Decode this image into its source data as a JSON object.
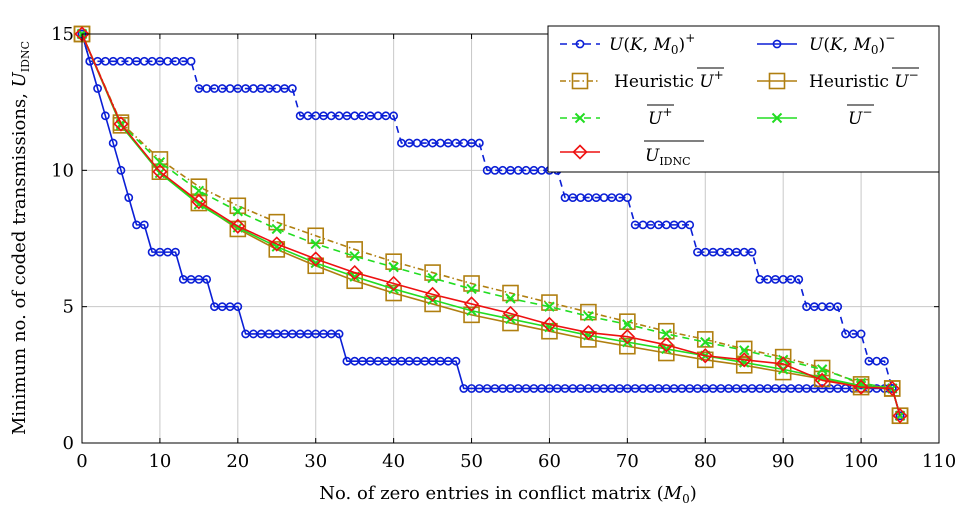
{
  "chart_data": {
    "type": "line",
    "xlabel": "No. of zero entries in conflict matrix (M0)",
    "ylabel": "Minimum no. of coded transmissions, U_IDNC",
    "xlim": [
      0,
      110
    ],
    "ylim": [
      0,
      15
    ],
    "xticks": [
      0,
      10,
      20,
      30,
      40,
      50,
      60,
      70,
      80,
      90,
      100,
      110
    ],
    "yticks": [
      0,
      5,
      10,
      15
    ],
    "grid": true,
    "legend_position": "top-right",
    "colors": {
      "blue": "#0b1fd6",
      "olive": "#b07f10",
      "green": "#22dd22",
      "red": "#ee1111"
    },
    "series": [
      {
        "key": "u_plus",
        "name": "U(K, M0)+",
        "color": "#0b1fd6",
        "style": "dashed",
        "marker": "circle",
        "x": [
          0,
          1,
          2,
          3,
          4,
          5,
          6,
          7,
          8,
          9,
          10,
          11,
          12,
          13,
          14,
          15,
          16,
          17,
          18,
          19,
          20,
          21,
          22,
          23,
          24,
          25,
          26,
          27,
          28,
          29,
          30,
          31,
          32,
          33,
          34,
          35,
          36,
          37,
          38,
          39,
          40,
          41,
          42,
          43,
          44,
          45,
          46,
          47,
          48,
          49,
          50,
          51,
          52,
          53,
          54,
          55,
          56,
          57,
          58,
          59,
          60,
          61,
          62,
          63,
          64,
          65,
          66,
          67,
          68,
          69,
          70,
          71,
          72,
          73,
          74,
          75,
          76,
          77,
          78,
          79,
          80,
          81,
          82,
          83,
          84,
          85,
          86,
          87,
          88,
          89,
          90,
          91,
          92,
          93,
          94,
          95,
          96,
          97,
          98,
          99,
          100,
          101,
          102,
          103,
          104,
          105
        ],
        "y": [
          15,
          14,
          14,
          14,
          14,
          14,
          14,
          14,
          14,
          14,
          14,
          14,
          14,
          14,
          14,
          13,
          13,
          13,
          13,
          13,
          13,
          13,
          13,
          13,
          13,
          13,
          13,
          13,
          12,
          12,
          12,
          12,
          12,
          12,
          12,
          12,
          12,
          12,
          12,
          12,
          12,
          11,
          11,
          11,
          11,
          11,
          11,
          11,
          11,
          11,
          11,
          11,
          10,
          10,
          10,
          10,
          10,
          10,
          10,
          10,
          10,
          10,
          9,
          9,
          9,
          9,
          9,
          9,
          9,
          9,
          9,
          8,
          8,
          8,
          8,
          8,
          8,
          8,
          8,
          7,
          7,
          7,
          7,
          7,
          7,
          7,
          7,
          6,
          6,
          6,
          6,
          6,
          6,
          5,
          5,
          5,
          5,
          5,
          4,
          4,
          4,
          3,
          3,
          3,
          2,
          1
        ]
      },
      {
        "key": "u_minus",
        "name": "U(K, M0)−",
        "color": "#0b1fd6",
        "style": "solid",
        "marker": "circle",
        "x": [
          0,
          1,
          2,
          3,
          4,
          5,
          6,
          7,
          8,
          9,
          10,
          11,
          12,
          13,
          14,
          15,
          16,
          17,
          18,
          19,
          20,
          21,
          22,
          23,
          24,
          25,
          26,
          27,
          28,
          29,
          30,
          31,
          32,
          33,
          34,
          35,
          36,
          37,
          38,
          39,
          40,
          41,
          42,
          43,
          44,
          45,
          46,
          47,
          48,
          49,
          50,
          51,
          52,
          53,
          54,
          55,
          56,
          57,
          58,
          59,
          60,
          61,
          62,
          63,
          64,
          65,
          66,
          67,
          68,
          69,
          70,
          71,
          72,
          73,
          74,
          75,
          76,
          77,
          78,
          79,
          80,
          81,
          82,
          83,
          84,
          85,
          86,
          87,
          88,
          89,
          90,
          91,
          92,
          93,
          94,
          95,
          96,
          97,
          98,
          99,
          100,
          101,
          102,
          103,
          104,
          105
        ],
        "y": [
          15,
          14,
          13,
          12,
          11,
          10,
          9,
          8,
          8,
          7,
          7,
          7,
          7,
          6,
          6,
          6,
          6,
          5,
          5,
          5,
          5,
          4,
          4,
          4,
          4,
          4,
          4,
          4,
          4,
          4,
          4,
          4,
          4,
          4,
          3,
          3,
          3,
          3,
          3,
          3,
          3,
          3,
          3,
          3,
          3,
          3,
          3,
          3,
          3,
          2,
          2,
          2,
          2,
          2,
          2,
          2,
          2,
          2,
          2,
          2,
          2,
          2,
          2,
          2,
          2,
          2,
          2,
          2,
          2,
          2,
          2,
          2,
          2,
          2,
          2,
          2,
          2,
          2,
          2,
          2,
          2,
          2,
          2,
          2,
          2,
          2,
          2,
          2,
          2,
          2,
          2,
          2,
          2,
          2,
          2,
          2,
          2,
          2,
          2,
          2,
          2,
          2,
          2,
          2,
          2,
          1
        ]
      },
      {
        "key": "heur_plus",
        "name": "Heuristic U+",
        "color": "#b07f10",
        "style": "dashdot",
        "marker": "square",
        "x": [
          0,
          5,
          10,
          15,
          20,
          25,
          30,
          35,
          40,
          45,
          50,
          55,
          60,
          65,
          70,
          75,
          80,
          85,
          90,
          95,
          100,
          104,
          105
        ],
        "y": [
          15,
          11.75,
          10.4,
          9.4,
          8.7,
          8.1,
          7.6,
          7.1,
          6.65,
          6.25,
          5.85,
          5.5,
          5.15,
          4.8,
          4.45,
          4.1,
          3.8,
          3.45,
          3.15,
          2.75,
          2.15,
          2.0,
          1.0
        ]
      },
      {
        "key": "heur_minus",
        "name": "Heuristic U−",
        "color": "#b07f10",
        "style": "solid",
        "marker": "square",
        "x": [
          0,
          5,
          10,
          15,
          20,
          25,
          30,
          35,
          40,
          45,
          50,
          55,
          60,
          65,
          70,
          75,
          80,
          85,
          90,
          95,
          100,
          104,
          105
        ],
        "y": [
          15,
          11.65,
          9.95,
          8.8,
          7.85,
          7.1,
          6.5,
          5.95,
          5.5,
          5.1,
          4.7,
          4.4,
          4.1,
          3.8,
          3.55,
          3.3,
          3.05,
          2.85,
          2.6,
          2.35,
          2.05,
          2.0,
          1.0
        ]
      },
      {
        "key": "u_bar_plus",
        "name": "U+",
        "color": "#22dd22",
        "style": "dashed",
        "marker": "cross",
        "x": [
          0,
          5,
          10,
          15,
          20,
          25,
          30,
          35,
          40,
          45,
          50,
          55,
          60,
          65,
          70,
          75,
          80,
          85,
          90,
          95,
          100,
          104,
          105
        ],
        "y": [
          15,
          11.7,
          10.3,
          9.25,
          8.5,
          7.85,
          7.3,
          6.85,
          6.45,
          6.05,
          5.65,
          5.3,
          5.0,
          4.65,
          4.35,
          4.0,
          3.7,
          3.4,
          3.05,
          2.7,
          2.2,
          2.0,
          1.0
        ]
      },
      {
        "key": "u_bar_minus",
        "name": "U−",
        "color": "#22dd22",
        "style": "solid",
        "marker": "cross",
        "x": [
          0,
          5,
          10,
          15,
          20,
          25,
          30,
          35,
          40,
          45,
          50,
          55,
          60,
          65,
          70,
          75,
          80,
          85,
          90,
          95,
          100,
          104,
          105
        ],
        "y": [
          15,
          11.65,
          9.9,
          8.75,
          7.9,
          7.2,
          6.6,
          6.1,
          5.65,
          5.25,
          4.85,
          4.55,
          4.25,
          3.95,
          3.7,
          3.45,
          3.2,
          2.95,
          2.7,
          2.4,
          2.1,
          2.0,
          1.0
        ]
      },
      {
        "key": "u_idnc",
        "name": "U_IDNC",
        "color": "#ee1111",
        "style": "solid",
        "marker": "diamond",
        "x": [
          0,
          5,
          10,
          15,
          20,
          25,
          30,
          35,
          40,
          45,
          50,
          55,
          60,
          65,
          70,
          75,
          80,
          85,
          90,
          95,
          100,
          104,
          105
        ],
        "y": [
          15,
          11.7,
          9.95,
          8.85,
          7.95,
          7.3,
          6.75,
          6.25,
          5.85,
          5.45,
          5.1,
          4.75,
          4.35,
          4.05,
          3.9,
          3.6,
          3.2,
          3.05,
          2.9,
          2.3,
          2.05,
          2.0,
          1.0
        ]
      }
    ]
  },
  "axes_text": {
    "xlabel_main": "No. of zero entries in conflict matrix (",
    "xlabel_var": "M",
    "xlabel_sub": "0",
    "xlabel_close": ")",
    "ylabel_main": "Minimum no. of coded transmissions, ",
    "ylabel_var": "U",
    "ylabel_sub": "IDNC"
  },
  "legend": {
    "u_plus": {
      "fn": "U",
      "open": "(",
      "k": "K",
      "sep": ", ",
      "m": "M",
      "msub": "0",
      "close": ")",
      "sup": "+"
    },
    "u_minus": {
      "fn": "U",
      "open": "(",
      "k": "K",
      "sep": ", ",
      "m": "M",
      "msub": "0",
      "close": ")",
      "sup": "−"
    },
    "heur_plus": {
      "word": "Heuristic ",
      "var": "U",
      "sup": "+"
    },
    "heur_minus": {
      "word": "Heuristic ",
      "var": "U",
      "sup": "−"
    },
    "u_bar_plus": {
      "var": "U",
      "sup": "+"
    },
    "u_bar_minus": {
      "var": "U",
      "sup": "−"
    },
    "u_idnc": {
      "var": "U",
      "sub": "IDNC"
    }
  }
}
